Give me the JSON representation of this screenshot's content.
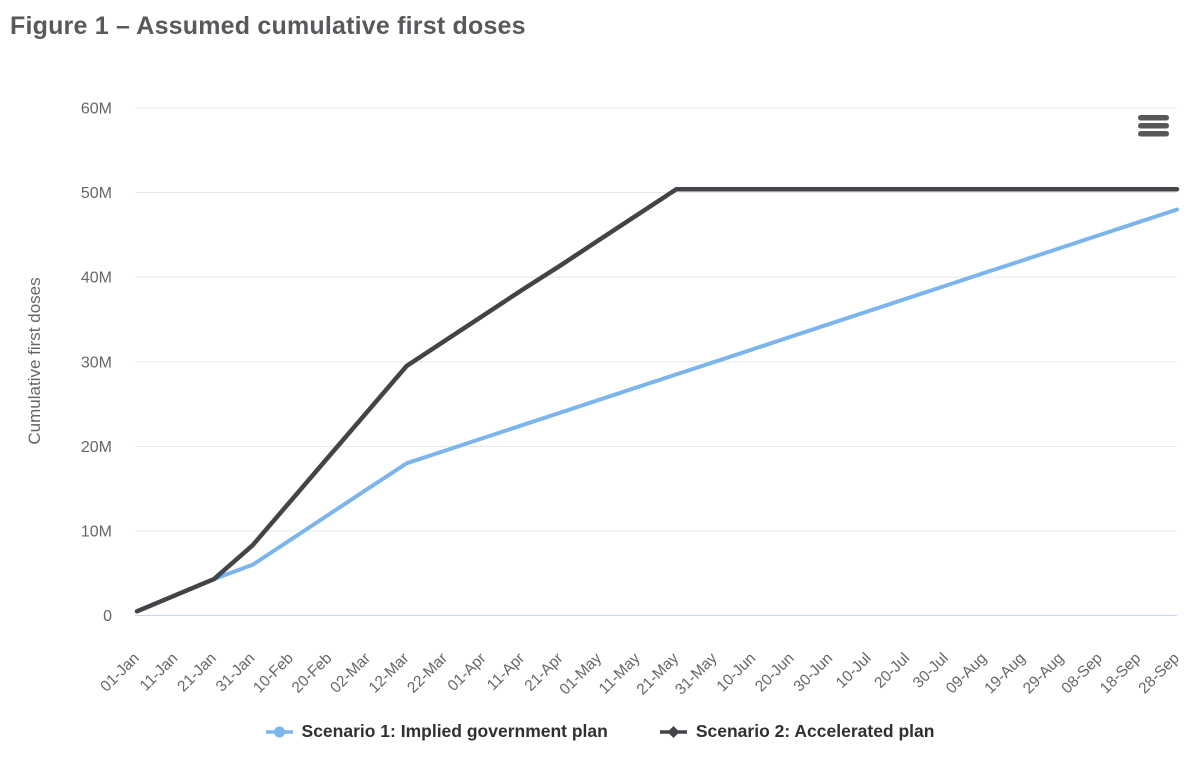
{
  "title": "Figure 1 – Assumed cumulative first doses",
  "menu": {
    "icon": "hamburger-menu-icon"
  },
  "colors": {
    "series1": "#7cb5ec",
    "series2": "#434348",
    "gridline": "#e6e6e6",
    "axis_line": "#ccd6eb",
    "axis_text": "#666666",
    "title_text": "#58595c",
    "legend_text": "#303034",
    "menu_icon": "#58585a"
  },
  "chart_data": {
    "type": "line",
    "title": "Figure 1 – Assumed cumulative first doses",
    "xlabel": "",
    "ylabel": "Cumulative first doses",
    "ylim": [
      0,
      60
    ],
    "y_unit": "millions of doses",
    "grid": true,
    "legend_position": "bottom",
    "x_tick_rotation": -45,
    "y_ticks": [
      {
        "value": 0,
        "label": "0"
      },
      {
        "value": 10,
        "label": "10M"
      },
      {
        "value": 20,
        "label": "20M"
      },
      {
        "value": 30,
        "label": "30M"
      },
      {
        "value": 40,
        "label": "40M"
      },
      {
        "value": 50,
        "label": "50M"
      },
      {
        "value": 60,
        "label": "60M"
      }
    ],
    "categories": [
      "01-Jan",
      "11-Jan",
      "21-Jan",
      "31-Jan",
      "10-Feb",
      "20-Feb",
      "02-Mar",
      "12-Mar",
      "22-Mar",
      "01-Apr",
      "11-Apr",
      "21-Apr",
      "01-May",
      "11-May",
      "21-May",
      "31-May",
      "10-Jun",
      "20-Jun",
      "30-Jun",
      "10-Jul",
      "20-Jul",
      "30-Jul",
      "09-Aug",
      "19-Aug",
      "29-Aug",
      "08-Sep",
      "18-Sep",
      "28-Sep"
    ],
    "series": [
      {
        "name": "Scenario 1: Implied government plan",
        "color": "#7cb5ec",
        "marker": "circle",
        "values": [
          0.5,
          2.4,
          4.3,
          6.0,
          9.0,
          12.0,
          15.0,
          18.0,
          19.5,
          21.0,
          22.5,
          24.0,
          25.5,
          27.0,
          28.5,
          30.0,
          31.5,
          33.0,
          34.5,
          36.0,
          37.5,
          39.0,
          40.5,
          42.0,
          43.5,
          45.0,
          46.5,
          48.0
        ]
      },
      {
        "name": "Scenario 2: Accelerated plan",
        "color": "#434348",
        "marker": "diamond",
        "values": [
          0.5,
          2.4,
          4.3,
          8.3,
          13.6,
          18.9,
          24.2,
          29.5,
          32.5,
          35.5,
          38.5,
          41.4,
          44.4,
          47.4,
          50.4,
          50.4,
          50.4,
          50.4,
          50.4,
          50.4,
          50.4,
          50.4,
          50.4,
          50.4,
          50.4,
          50.4,
          50.4,
          50.4
        ]
      }
    ]
  }
}
